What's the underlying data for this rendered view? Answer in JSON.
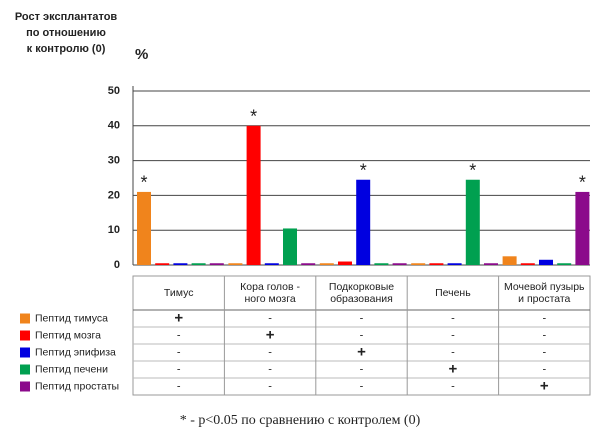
{
  "chart_data": {
    "type": "bar",
    "title_lines": [
      "Рост эксплантатов",
      "по отношению",
      "к контролю (0)"
    ],
    "y_label": "%",
    "categories": [
      [
        "Тимус"
      ],
      [
        "Кора голов -",
        "ного мозга"
      ],
      [
        "Подкорковые",
        "образования"
      ],
      [
        "Печень"
      ],
      [
        "Мочевой пузырь",
        "и простата"
      ]
    ],
    "series": [
      {
        "name": "Пептид тимуса",
        "color": "#f0841c",
        "values": [
          21,
          0.5,
          0.5,
          0.5,
          2.5
        ],
        "annotations": [
          "*",
          null,
          null,
          null,
          null
        ],
        "table": [
          "+",
          "-",
          "-",
          "-",
          "-"
        ]
      },
      {
        "name": "Пептид мозга",
        "color": "#ff0000",
        "values": [
          0.5,
          40,
          1,
          0.5,
          0.5
        ],
        "annotations": [
          null,
          "*",
          null,
          null,
          null
        ],
        "table": [
          "-",
          "+",
          "-",
          "-",
          "-"
        ]
      },
      {
        "name": "Пептид эпифиза",
        "color": "#0000e0",
        "values": [
          0.5,
          0.5,
          24.5,
          0.5,
          1.5
        ],
        "annotations": [
          null,
          null,
          "*",
          null,
          null
        ],
        "table": [
          "-",
          "-",
          "+",
          "-",
          "-"
        ]
      },
      {
        "name": "Пептид печени",
        "color": "#00a050",
        "values": [
          0.5,
          10.5,
          0.5,
          24.5,
          0.5
        ],
        "annotations": [
          null,
          null,
          null,
          "*",
          null
        ],
        "table": [
          "-",
          "-",
          "-",
          "+",
          "-"
        ]
      },
      {
        "name": "Пептид простаты",
        "color": "#8b0a8b",
        "values": [
          0.5,
          0.5,
          0.5,
          0.5,
          21
        ],
        "annotations": [
          null,
          null,
          null,
          null,
          "*"
        ],
        "table": [
          "-",
          "-",
          "-",
          "-",
          "+"
        ]
      }
    ],
    "ylim": [
      0,
      50
    ],
    "yticks": [
      0,
      10,
      20,
      30,
      40,
      50
    ],
    "grid": true,
    "footnote": "* - p<0.05 по сравнению с контролем (0)"
  }
}
